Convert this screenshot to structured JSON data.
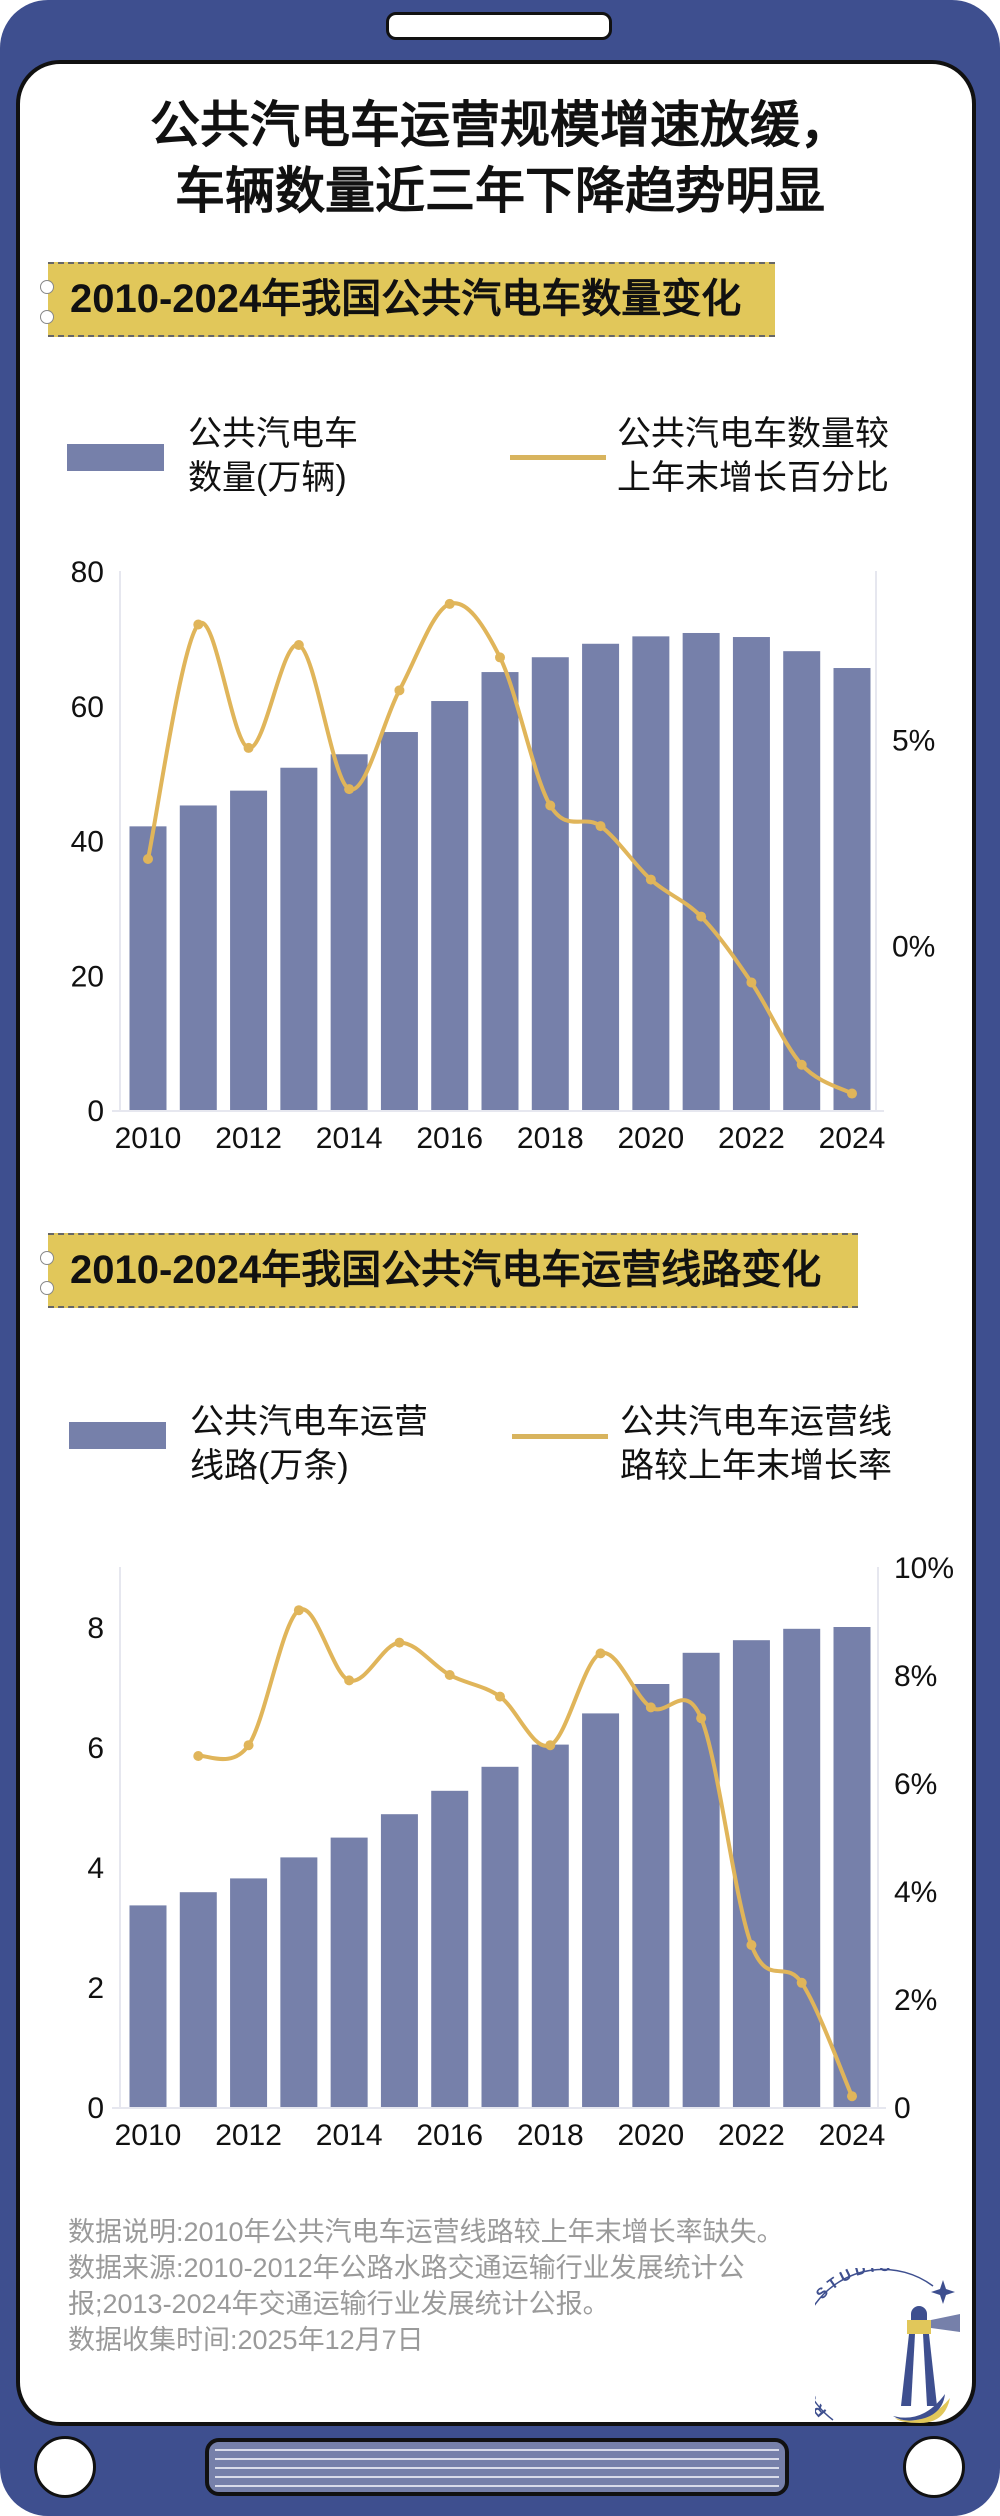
{
  "title": {
    "line1": "公共汽电车运营规模增速放缓，",
    "line2": "车辆数量近三年下降趋势明显"
  },
  "colors": {
    "frame": "#3e4f8f",
    "bar": "#7680aa",
    "line": "#e0b55a",
    "banner": "#e1c75a"
  },
  "chart_data": [
    {
      "type": "bar+line",
      "banner": "2010-2024年我国公共汽电车数量变化",
      "legend": {
        "bar_line1": "公共汽电车",
        "bar_line2": "数量(万辆)",
        "line_line1": "公共汽电车数量较",
        "line_line2": "上年末增长百分比"
      },
      "categories": [
        2010,
        2011,
        2012,
        2013,
        2014,
        2015,
        2016,
        2017,
        2018,
        2019,
        2020,
        2021,
        2022,
        2023,
        2024
      ],
      "x_tick_labels": [
        "2010",
        "2012",
        "2014",
        "2016",
        "2018",
        "2020",
        "2022",
        "2024"
      ],
      "series": [
        {
          "name": "公共汽电车数量(万辆)",
          "type": "bar",
          "axis": "left",
          "values": [
            42.1,
            45.2,
            47.4,
            50.8,
            52.8,
            56.1,
            60.7,
            65.0,
            67.2,
            69.2,
            70.3,
            70.8,
            70.2,
            68.1,
            65.6
          ]
        },
        {
          "name": "公共汽电车数量较上年末增长百分比",
          "type": "line",
          "axis": "right",
          "unit": "%",
          "values": [
            2.1,
            7.8,
            4.8,
            7.3,
            3.8,
            6.2,
            8.3,
            7.0,
            3.4,
            2.9,
            1.6,
            0.7,
            -0.9,
            -2.9,
            -3.6
          ]
        }
      ],
      "ylim": [
        0,
        80
      ],
      "y_ticks": [
        "0",
        "20",
        "40",
        "60",
        "80"
      ],
      "y_tick_values": [
        0,
        20,
        40,
        60,
        80
      ],
      "y2lim": [
        -4,
        9.1
      ],
      "y2_ticks": [
        "0%",
        "5%"
      ],
      "y2_tick_values": [
        0,
        5
      ],
      "grid": false
    },
    {
      "type": "bar+line",
      "banner": "2010-2024年我国公共汽电车运营线路变化",
      "legend": {
        "bar_line1": "公共汽电车运营",
        "bar_line2": "线路(万条)",
        "line_line1": "公共汽电车运营线",
        "line_line2": "路较上年末增长率"
      },
      "categories": [
        2010,
        2011,
        2012,
        2013,
        2014,
        2015,
        2016,
        2017,
        2018,
        2019,
        2020,
        2021,
        2022,
        2023,
        2024
      ],
      "x_tick_labels": [
        "2010",
        "2012",
        "2014",
        "2016",
        "2018",
        "2020",
        "2022",
        "2024"
      ],
      "series": [
        {
          "name": "公共汽电车运营线路(万条)",
          "type": "bar",
          "axis": "left",
          "values": [
            3.36,
            3.58,
            3.81,
            4.16,
            4.49,
            4.88,
            5.27,
            5.67,
            6.04,
            6.56,
            7.05,
            7.57,
            7.78,
            7.97,
            8.0
          ]
        },
        {
          "name": "公共汽电车运营线路较上年末增长率",
          "type": "line",
          "axis": "right",
          "unit": "%",
          "values": [
            null,
            6.5,
            6.7,
            9.2,
            7.9,
            8.6,
            8.0,
            7.6,
            6.7,
            8.4,
            7.4,
            7.2,
            3.0,
            2.3,
            0.2
          ]
        }
      ],
      "ylim": [
        0,
        9
      ],
      "y_ticks": [
        "0",
        "2",
        "4",
        "6",
        "8"
      ],
      "y_tick_values": [
        0,
        2,
        4,
        6,
        8
      ],
      "y2lim": [
        0,
        10
      ],
      "y2_ticks": [
        "0",
        "2%",
        "4%",
        "6%",
        "8%",
        "10%"
      ],
      "y2_tick_values": [
        0,
        2,
        4,
        6,
        8,
        10
      ],
      "grid": false
    }
  ],
  "notes": {
    "line1": "数据说明:2010年公共汽电车运营线路较上年末增长率缺失。",
    "line2": "数据来源:2010-2012年公路水路交通运输行业发展统计公报;2013-2024年交通运输行业发展统计公报。",
    "line3": "数据收集时间:2025年12月7日"
  },
  "logo": {
    "text": "RUC NEWS STUDIO",
    "icon": "lighthouse-icon"
  }
}
